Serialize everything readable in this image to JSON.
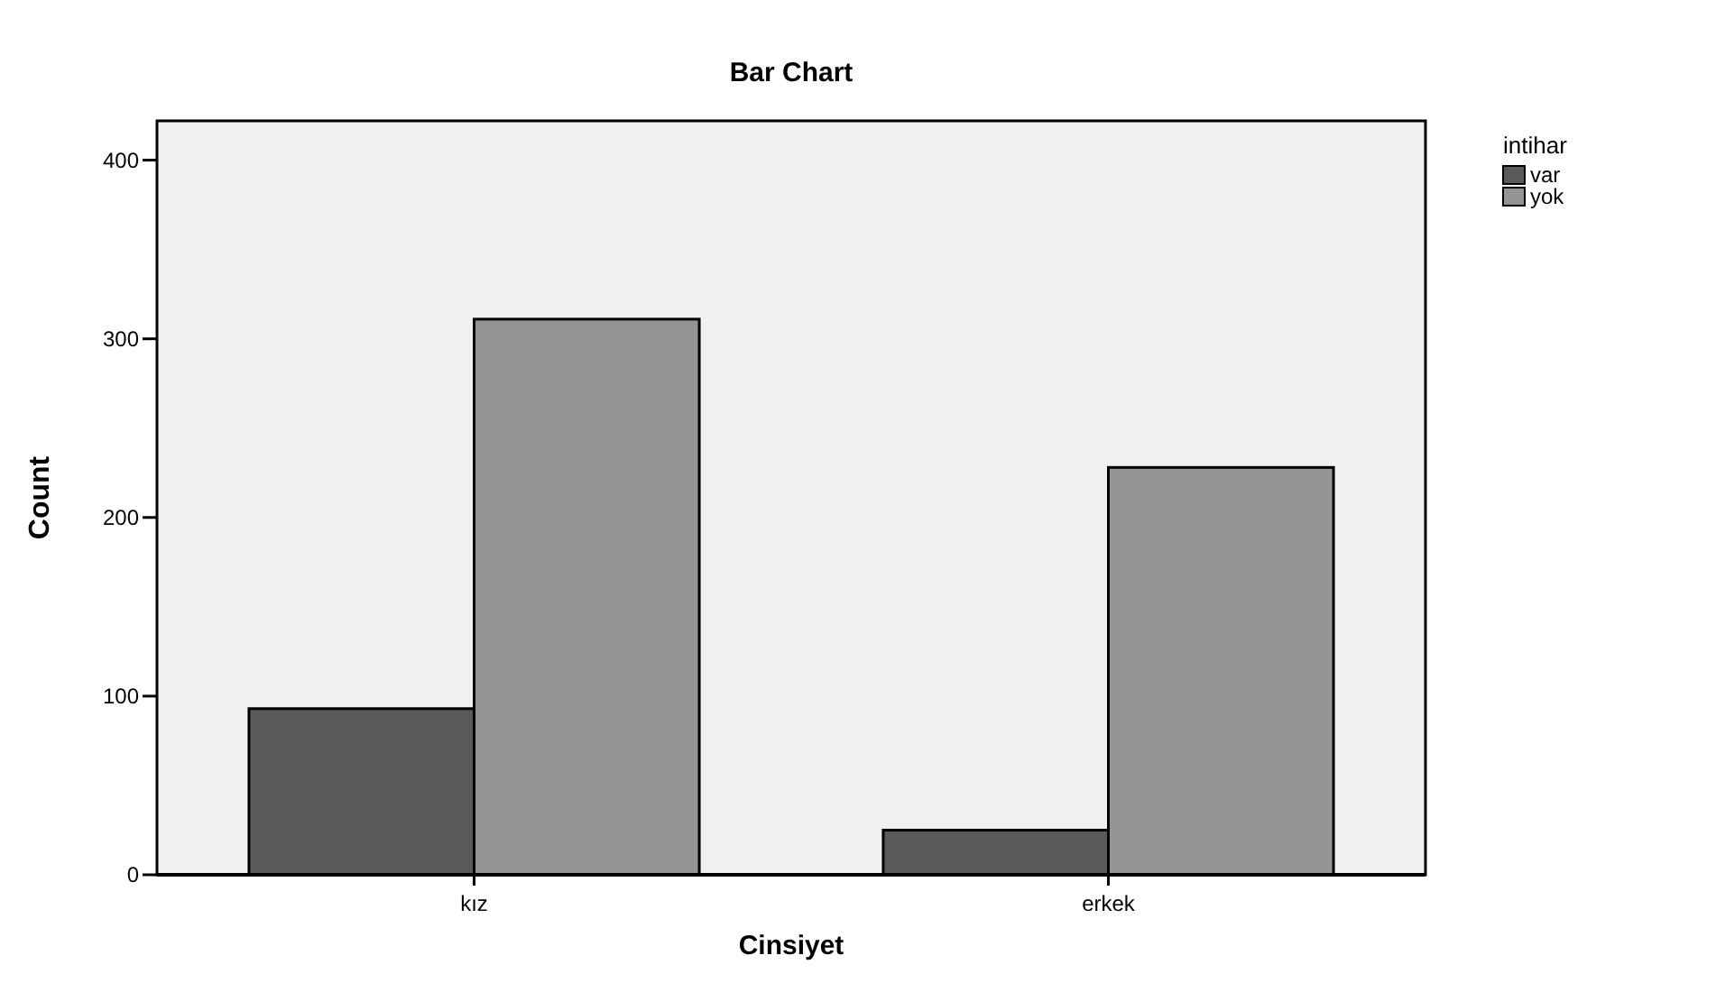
{
  "chart_data": {
    "type": "bar",
    "title": "Bar Chart",
    "xlabel": "Cinsiyet",
    "ylabel": "Count",
    "legend_title": "intihar",
    "categories": [
      "kız",
      "erkek"
    ],
    "series": [
      {
        "name": "var",
        "color": "#5a5a5a",
        "values": [
          93,
          25
        ]
      },
      {
        "name": "yok",
        "color": "#949494",
        "values": [
          311,
          228
        ]
      }
    ],
    "ylim": [
      0,
      422
    ],
    "yticks": [
      0,
      100,
      200,
      300,
      400
    ],
    "grid": false,
    "legend": "top right"
  }
}
